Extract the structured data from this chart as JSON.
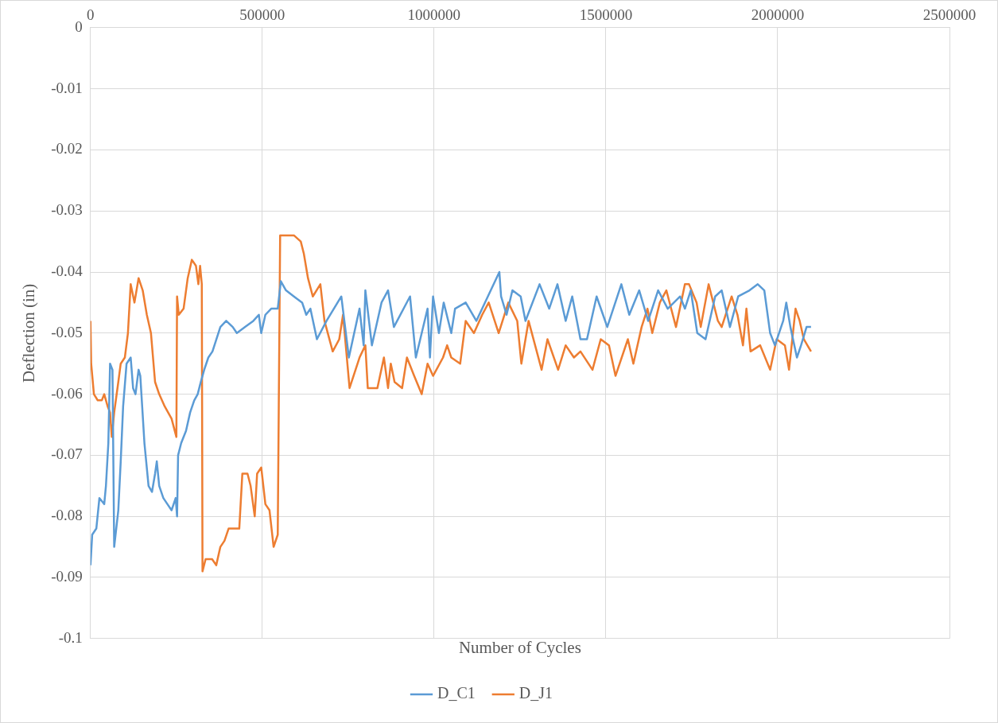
{
  "chart_data": {
    "type": "line",
    "xlabel": "Number of Cycles",
    "ylabel": "Deflection (in)",
    "xlim": [
      0,
      2500000
    ],
    "xticks": [
      0,
      500000,
      1000000,
      1500000,
      2000000,
      2500000
    ],
    "ylim": [
      -0.1,
      0
    ],
    "yticks": [
      -0.1,
      -0.09,
      -0.08,
      -0.07,
      -0.06,
      -0.05,
      -0.04,
      -0.03,
      -0.02,
      -0.01,
      0
    ],
    "grid": true,
    "legend": "bottom",
    "marker": "none",
    "line_style": "solid",
    "series": [
      {
        "name": "D_C1",
        "color": "#5b9bd5",
        "x": [
          0,
          5000,
          17000,
          26000,
          40000,
          45000,
          52000,
          57000,
          64000,
          69000,
          81000,
          88000,
          95000,
          105000,
          117000,
          124000,
          131000,
          140000,
          145000,
          157000,
          169000,
          179000,
          188000,
          193000,
          200000,
          212000,
          224000,
          236000,
          248000,
          252000,
          255000,
          264000,
          278000,
          290000,
          302000,
          312000,
          321000,
          331000,
          343000,
          355000,
          378000,
          395000,
          414000,
          426000,
          450000,
          474000,
          490000,
          497000,
          509000,
          526000,
          545000,
          554000,
          569000,
          592000,
          616000,
          628000,
          640000,
          659000,
          687000,
          730000,
          752000,
          783000,
          795000,
          800000,
          819000,
          847000,
          866000,
          883000,
          930000,
          947000,
          981000,
          988000,
          997000,
          1014000,
          1028000,
          1050000,
          1061000,
          1092000,
          1123000,
          1190000,
          1195000,
          1211000,
          1228000,
          1252000,
          1266000,
          1307000,
          1335000,
          1359000,
          1383000,
          1402000,
          1426000,
          1445000,
          1473000,
          1504000,
          1545000,
          1568000,
          1597000,
          1623000,
          1652000,
          1680000,
          1716000,
          1730000,
          1747000,
          1766000,
          1790000,
          1818000,
          1837000,
          1861000,
          1885000,
          1918000,
          1942000,
          1961000,
          1978000,
          1992000,
          2016000,
          2025000,
          2037000,
          2056000,
          2068000,
          2084000,
          2097000
        ],
        "values": [
          -0.088,
          -0.083,
          -0.082,
          -0.077,
          -0.078,
          -0.075,
          -0.068,
          -0.055,
          -0.056,
          -0.085,
          -0.079,
          -0.071,
          -0.062,
          -0.055,
          -0.054,
          -0.059,
          -0.06,
          -0.056,
          -0.057,
          -0.068,
          -0.075,
          -0.076,
          -0.073,
          -0.071,
          -0.075,
          -0.077,
          -0.078,
          -0.079,
          -0.077,
          -0.08,
          -0.07,
          -0.068,
          -0.066,
          -0.063,
          -0.061,
          -0.06,
          -0.058,
          -0.056,
          -0.054,
          -0.053,
          -0.049,
          -0.048,
          -0.049,
          -0.05,
          -0.049,
          -0.048,
          -0.047,
          -0.05,
          -0.047,
          -0.046,
          -0.046,
          -0.0415,
          -0.043,
          -0.044,
          -0.045,
          -0.047,
          -0.046,
          -0.051,
          -0.048,
          -0.044,
          -0.054,
          -0.046,
          -0.052,
          -0.043,
          -0.052,
          -0.045,
          -0.043,
          -0.049,
          -0.044,
          -0.054,
          -0.046,
          -0.054,
          -0.044,
          -0.05,
          -0.045,
          -0.05,
          -0.046,
          -0.045,
          -0.048,
          -0.04,
          -0.044,
          -0.047,
          -0.043,
          -0.044,
          -0.048,
          -0.042,
          -0.046,
          -0.042,
          -0.048,
          -0.044,
          -0.051,
          -0.051,
          -0.044,
          -0.049,
          -0.042,
          -0.047,
          -0.043,
          -0.048,
          -0.043,
          -0.046,
          -0.044,
          -0.046,
          -0.043,
          -0.05,
          -0.051,
          -0.044,
          -0.043,
          -0.049,
          -0.044,
          -0.043,
          -0.042,
          -0.043,
          -0.05,
          -0.052,
          -0.048,
          -0.045,
          -0.049,
          -0.054,
          -0.052,
          -0.049,
          -0.049
        ]
      },
      {
        "name": "D_J1",
        "color": "#ed7d31",
        "x": [
          0,
          2000,
          10000,
          21000,
          33000,
          40000,
          50000,
          57000,
          62000,
          69000,
          81000,
          88000,
          100000,
          109000,
          117000,
          128000,
          140000,
          152000,
          164000,
          176000,
          188000,
          200000,
          216000,
          236000,
          250000,
          252000,
          257000,
          271000,
          283000,
          295000,
          307000,
          314000,
          319000,
          324000,
          326000,
          335000,
          354000,
          366000,
          378000,
          390000,
          402000,
          421000,
          433000,
          442000,
          457000,
          466000,
          478000,
          485000,
          497000,
          509000,
          521000,
          533000,
          545000,
          552000,
          569000,
          592000,
          612000,
          621000,
          633000,
          647000,
          669000,
          681000,
          705000,
          724000,
          735000,
          754000,
          783000,
          800000,
          807000,
          835000,
          854000,
          866000,
          874000,
          885000,
          907000,
          921000,
          942000,
          964000,
          981000,
          997000,
          1026000,
          1038000,
          1050000,
          1076000,
          1092000,
          1116000,
          1140000,
          1159000,
          1188000,
          1216000,
          1242000,
          1254000,
          1275000,
          1313000,
          1330000,
          1361000,
          1383000,
          1407000,
          1426000,
          1461000,
          1485000,
          1509000,
          1528000,
          1564000,
          1580000,
          1604000,
          1621000,
          1635000,
          1657000,
          1676000,
          1704000,
          1730000,
          1742000,
          1764000,
          1776000,
          1799000,
          1826000,
          1837000,
          1866000,
          1883000,
          1899000,
          1909000,
          1921000,
          1949000,
          1978000,
          1997000,
          2021000,
          2033000,
          2052000,
          2064000,
          2076000,
          2097000
        ],
        "values": [
          -0.048,
          -0.055,
          -0.06,
          -0.061,
          -0.061,
          -0.06,
          -0.062,
          -0.063,
          -0.067,
          -0.063,
          -0.058,
          -0.055,
          -0.054,
          -0.05,
          -0.042,
          -0.045,
          -0.041,
          -0.043,
          -0.047,
          -0.05,
          -0.058,
          -0.06,
          -0.062,
          -0.064,
          -0.067,
          -0.044,
          -0.047,
          -0.046,
          -0.041,
          -0.038,
          -0.039,
          -0.042,
          -0.039,
          -0.042,
          -0.089,
          -0.087,
          -0.087,
          -0.088,
          -0.085,
          -0.084,
          -0.082,
          -0.082,
          -0.082,
          -0.073,
          -0.073,
          -0.075,
          -0.08,
          -0.073,
          -0.072,
          -0.078,
          -0.079,
          -0.085,
          -0.083,
          -0.034,
          -0.034,
          -0.034,
          -0.035,
          -0.037,
          -0.041,
          -0.044,
          -0.042,
          -0.048,
          -0.053,
          -0.051,
          -0.047,
          -0.059,
          -0.054,
          -0.052,
          -0.059,
          -0.059,
          -0.054,
          -0.059,
          -0.055,
          -0.058,
          -0.059,
          -0.054,
          -0.057,
          -0.06,
          -0.055,
          -0.057,
          -0.054,
          -0.052,
          -0.054,
          -0.055,
          -0.048,
          -0.05,
          -0.047,
          -0.045,
          -0.05,
          -0.045,
          -0.048,
          -0.055,
          -0.048,
          -0.056,
          -0.051,
          -0.056,
          -0.052,
          -0.054,
          -0.053,
          -0.056,
          -0.051,
          -0.052,
          -0.057,
          -0.051,
          -0.055,
          -0.049,
          -0.046,
          -0.05,
          -0.045,
          -0.043,
          -0.049,
          -0.042,
          -0.042,
          -0.045,
          -0.049,
          -0.042,
          -0.048,
          -0.049,
          -0.044,
          -0.047,
          -0.052,
          -0.046,
          -0.053,
          -0.052,
          -0.056,
          -0.051,
          -0.052,
          -0.056,
          -0.046,
          -0.048,
          -0.051,
          -0.053
        ]
      }
    ]
  }
}
